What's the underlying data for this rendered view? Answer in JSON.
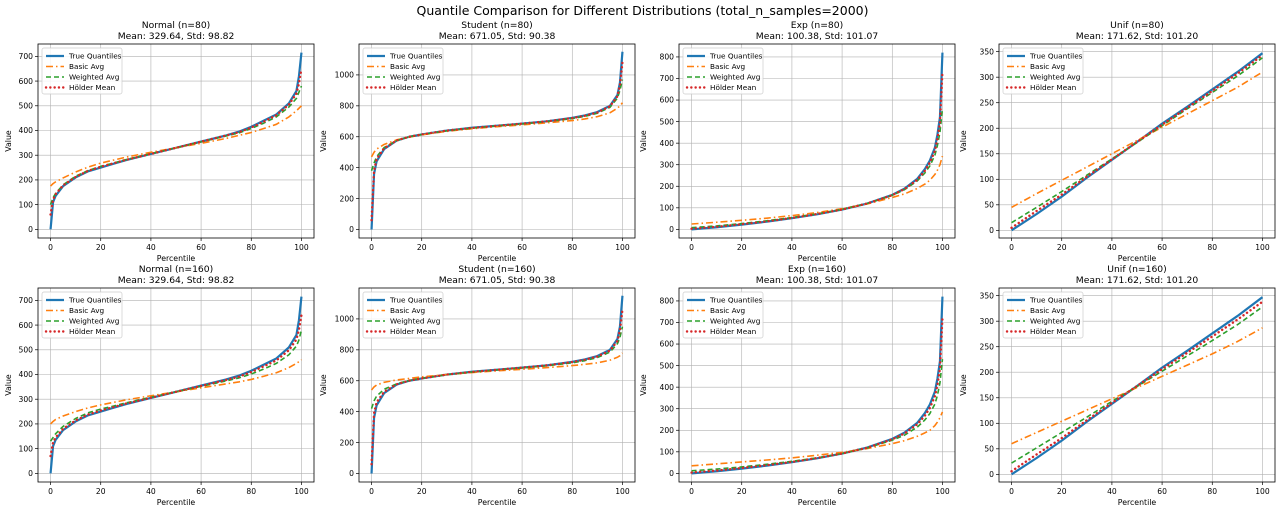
{
  "figure": {
    "title": "Quantile Comparison for Different Distributions (total_n_samples=2000)"
  },
  "legend_labels": [
    "True Quantiles",
    "Basic Avg",
    "Weighted Avg",
    "Hölder Mean"
  ],
  "colors": {
    "true": "#1f77b4",
    "basic": "#ff7f0e",
    "weighted": "#2ca02c",
    "holder": "#d62728",
    "grid": "#b0b0b0"
  },
  "chart_data": [
    {
      "type": "line",
      "title": "Normal (n=80)",
      "subtitle": "Mean: 329.64, Std: 98.82",
      "xlabel": "Percentile",
      "ylabel": "Value",
      "xlim": [
        -5,
        105
      ],
      "ylim": [
        -35,
        750
      ],
      "xticks": [
        0,
        20,
        40,
        60,
        80,
        100
      ],
      "yticks": [
        0,
        100,
        200,
        300,
        400,
        500,
        600,
        700
      ],
      "grid": true,
      "legend": "top-left",
      "x": [
        0,
        1,
        2,
        5,
        10,
        15,
        20,
        25,
        30,
        40,
        50,
        60,
        70,
        75,
        80,
        85,
        90,
        95,
        98,
        99,
        100
      ],
      "series": [
        {
          "name": "True Quantiles",
          "values": [
            0,
            110,
            135,
            175,
            210,
            235,
            250,
            265,
            280,
            305,
            330,
            355,
            380,
            395,
            415,
            440,
            465,
            510,
            560,
            620,
            715
          ]
        },
        {
          "name": "Basic Avg",
          "values": [
            175,
            185,
            192,
            208,
            232,
            252,
            268,
            280,
            292,
            312,
            330,
            348,
            368,
            380,
            392,
            408,
            425,
            455,
            480,
            490,
            500
          ]
        },
        {
          "name": "Weighted Avg",
          "values": [
            100,
            128,
            145,
            180,
            215,
            238,
            255,
            268,
            282,
            306,
            330,
            354,
            378,
            390,
            408,
            430,
            455,
            495,
            530,
            555,
            580
          ]
        },
        {
          "name": "Hölder Mean",
          "values": [
            60,
            120,
            142,
            178,
            212,
            237,
            253,
            267,
            281,
            305,
            330,
            355,
            380,
            393,
            412,
            436,
            462,
            505,
            550,
            590,
            650
          ]
        }
      ]
    },
    {
      "type": "line",
      "title": "Student (n=80)",
      "subtitle": "Mean: 671.05, Std: 90.38",
      "xlabel": "Percentile",
      "ylabel": "Value",
      "xlim": [
        -5,
        105
      ],
      "ylim": [
        -55,
        1200
      ],
      "xticks": [
        0,
        20,
        40,
        60,
        80,
        100
      ],
      "yticks": [
        0,
        200,
        400,
        600,
        800,
        1000
      ],
      "grid": true,
      "legend": "top-left",
      "x": [
        0,
        1,
        2,
        5,
        10,
        15,
        20,
        30,
        40,
        50,
        60,
        70,
        80,
        85,
        90,
        95,
        98,
        99,
        100
      ],
      "series": [
        {
          "name": "True Quantiles",
          "values": [
            0,
            360,
            440,
            520,
            575,
            600,
            615,
            640,
            658,
            671,
            685,
            700,
            722,
            738,
            760,
            800,
            870,
            950,
            1150
          ]
        },
        {
          "name": "Basic Avg",
          "values": [
            470,
            500,
            520,
            550,
            580,
            598,
            612,
            635,
            652,
            665,
            677,
            690,
            705,
            715,
            730,
            755,
            785,
            800,
            820
          ]
        },
        {
          "name": "Weighted Avg",
          "values": [
            380,
            430,
            470,
            530,
            575,
            600,
            614,
            638,
            656,
            670,
            683,
            698,
            718,
            732,
            752,
            790,
            850,
            900,
            970
          ]
        },
        {
          "name": "Hölder Mean",
          "values": [
            60,
            380,
            455,
            525,
            576,
            600,
            615,
            640,
            657,
            671,
            685,
            700,
            721,
            736,
            757,
            797,
            862,
            935,
            1080
          ]
        }
      ]
    },
    {
      "type": "line",
      "title": "Exp (n=80)",
      "subtitle": "Mean: 100.38, Std: 101.07",
      "xlabel": "Percentile",
      "ylabel": "Value",
      "xlim": [
        -5,
        105
      ],
      "ylim": [
        -40,
        860
      ],
      "xticks": [
        0,
        20,
        40,
        60,
        80,
        100
      ],
      "yticks": [
        0,
        100,
        200,
        300,
        400,
        500,
        600,
        700,
        800
      ],
      "grid": true,
      "legend": "top-left",
      "x": [
        0,
        10,
        20,
        30,
        40,
        50,
        60,
        70,
        80,
        85,
        90,
        93,
        95,
        97,
        98,
        99,
        100
      ],
      "series": [
        {
          "name": "True Quantiles",
          "values": [
            0,
            10,
            22,
            36,
            52,
            70,
            92,
            120,
            160,
            190,
            235,
            280,
            320,
            380,
            440,
            520,
            820
          ]
        },
        {
          "name": "Basic Avg",
          "values": [
            25,
            33,
            42,
            52,
            64,
            78,
            96,
            118,
            148,
            165,
            190,
            210,
            228,
            255,
            275,
            300,
            340
          ]
        },
        {
          "name": "Weighted Avg",
          "values": [
            8,
            16,
            27,
            40,
            55,
            72,
            93,
            120,
            158,
            185,
            225,
            262,
            295,
            345,
            390,
            450,
            560
          ]
        },
        {
          "name": "Hölder Mean",
          "values": [
            3,
            12,
            24,
            37,
            53,
            71,
            92,
            120,
            159,
            188,
            230,
            272,
            310,
            365,
            420,
            495,
            730
          ]
        }
      ]
    },
    {
      "type": "line",
      "title": "Unif (n=80)",
      "subtitle": "Mean: 171.62, Std: 101.20",
      "xlabel": "Percentile",
      "ylabel": "Value",
      "xlim": [
        -5,
        105
      ],
      "ylim": [
        -15,
        365
      ],
      "xticks": [
        0,
        20,
        40,
        60,
        80,
        100
      ],
      "yticks": [
        0,
        50,
        100,
        150,
        200,
        250,
        300,
        350
      ],
      "grid": true,
      "legend": "top-left",
      "x": [
        0,
        10,
        20,
        30,
        40,
        50,
        60,
        70,
        80,
        90,
        100
      ],
      "series": [
        {
          "name": "True Quantiles",
          "values": [
            0,
            32,
            66,
            103,
            138,
            173,
            209,
            242,
            276,
            310,
            347
          ]
        },
        {
          "name": "Basic Avg",
          "values": [
            45,
            72,
            98,
            124,
            150,
            176,
            202,
            228,
            254,
            280,
            310
          ]
        },
        {
          "name": "Weighted Avg",
          "values": [
            15,
            45,
            76,
            108,
            140,
            172,
            205,
            238,
            270,
            302,
            338
          ]
        },
        {
          "name": "Hölder Mean",
          "values": [
            5,
            38,
            70,
            105,
            139,
            173,
            207,
            240,
            273,
            307,
            343
          ]
        }
      ]
    },
    {
      "type": "line",
      "title": "Normal (n=160)",
      "subtitle": "Mean: 329.64, Std: 98.82",
      "xlabel": "Percentile",
      "ylabel": "Value",
      "xlim": [
        -5,
        105
      ],
      "ylim": [
        -35,
        750
      ],
      "xticks": [
        0,
        20,
        40,
        60,
        80,
        100
      ],
      "yticks": [
        0,
        100,
        200,
        300,
        400,
        500,
        600,
        700
      ],
      "grid": true,
      "legend": "top-left",
      "x": [
        0,
        1,
        2,
        5,
        10,
        15,
        20,
        25,
        30,
        40,
        50,
        60,
        70,
        75,
        80,
        85,
        90,
        95,
        98,
        99,
        100
      ],
      "series": [
        {
          "name": "True Quantiles",
          "values": [
            0,
            110,
            135,
            175,
            210,
            235,
            250,
            265,
            280,
            305,
            330,
            355,
            380,
            395,
            415,
            440,
            465,
            510,
            560,
            620,
            715
          ]
        },
        {
          "name": "Basic Avg",
          "values": [
            200,
            210,
            218,
            232,
            250,
            265,
            277,
            287,
            297,
            314,
            330,
            346,
            362,
            370,
            380,
            393,
            407,
            428,
            445,
            452,
            460
          ]
        },
        {
          "name": "Weighted Avg",
          "values": [
            130,
            145,
            160,
            190,
            222,
            245,
            260,
            272,
            285,
            308,
            330,
            352,
            374,
            386,
            402,
            422,
            445,
            480,
            515,
            540,
            580
          ]
        },
        {
          "name": "Hölder Mean",
          "values": [
            70,
            125,
            145,
            180,
            214,
            238,
            254,
            268,
            282,
            306,
            330,
            354,
            378,
            391,
            410,
            433,
            457,
            498,
            542,
            580,
            640
          ]
        }
      ]
    },
    {
      "type": "line",
      "title": "Student (n=160)",
      "subtitle": "Mean: 671.05, Std: 90.38",
      "xlabel": "Percentile",
      "ylabel": "Value",
      "xlim": [
        -5,
        105
      ],
      "ylim": [
        -55,
        1200
      ],
      "xticks": [
        0,
        20,
        40,
        60,
        80,
        100
      ],
      "yticks": [
        0,
        200,
        400,
        600,
        800,
        1000
      ],
      "grid": true,
      "legend": "top-left",
      "x": [
        0,
        1,
        2,
        5,
        10,
        15,
        20,
        30,
        40,
        50,
        60,
        70,
        80,
        85,
        90,
        95,
        98,
        99,
        100
      ],
      "series": [
        {
          "name": "True Quantiles",
          "values": [
            0,
            360,
            440,
            520,
            575,
            600,
            615,
            640,
            658,
            671,
            685,
            700,
            722,
            738,
            760,
            800,
            870,
            950,
            1150
          ]
        },
        {
          "name": "Basic Avg",
          "values": [
            540,
            560,
            572,
            590,
            605,
            615,
            625,
            640,
            653,
            664,
            674,
            685,
            698,
            706,
            716,
            733,
            752,
            762,
            780
          ]
        },
        {
          "name": "Weighted Avg",
          "values": [
            420,
            470,
            500,
            545,
            580,
            602,
            616,
            639,
            656,
            670,
            683,
            697,
            716,
            730,
            750,
            785,
            840,
            880,
            950
          ]
        },
        {
          "name": "Hölder Mean",
          "values": [
            60,
            390,
            460,
            528,
            577,
            601,
            615,
            640,
            657,
            671,
            685,
            700,
            721,
            736,
            757,
            795,
            858,
            925,
            1060
          ]
        }
      ]
    },
    {
      "type": "line",
      "title": "Exp (n=160)",
      "subtitle": "Mean: 100.38, Std: 101.07",
      "xlabel": "Percentile",
      "ylabel": "Value",
      "xlim": [
        -5,
        105
      ],
      "ylim": [
        -40,
        860
      ],
      "xticks": [
        0,
        20,
        40,
        60,
        80,
        100
      ],
      "yticks": [
        0,
        100,
        200,
        300,
        400,
        500,
        600,
        700,
        800
      ],
      "grid": true,
      "legend": "top-left",
      "x": [
        0,
        10,
        20,
        30,
        40,
        50,
        60,
        70,
        80,
        85,
        90,
        93,
        95,
        97,
        98,
        99,
        100
      ],
      "series": [
        {
          "name": "True Quantiles",
          "values": [
            0,
            10,
            22,
            36,
            52,
            70,
            92,
            120,
            160,
            190,
            235,
            280,
            320,
            380,
            440,
            520,
            820
          ]
        },
        {
          "name": "Basic Avg",
          "values": [
            35,
            44,
            53,
            62,
            72,
            84,
            98,
            115,
            138,
            152,
            172,
            188,
            200,
            222,
            238,
            258,
            285
          ]
        },
        {
          "name": "Weighted Avg",
          "values": [
            12,
            20,
            30,
            42,
            56,
            72,
            92,
            118,
            154,
            178,
            215,
            248,
            278,
            322,
            362,
            420,
            530
          ]
        },
        {
          "name": "Hölder Mean",
          "values": [
            4,
            13,
            25,
            38,
            53,
            71,
            92,
            119,
            158,
            186,
            228,
            268,
            304,
            358,
            410,
            485,
            720
          ]
        }
      ]
    },
    {
      "type": "line",
      "title": "Unif (n=160)",
      "subtitle": "Mean: 171.62, Std: 101.20",
      "xlabel": "Percentile",
      "ylabel": "Value",
      "xlim": [
        -5,
        105
      ],
      "ylim": [
        -15,
        365
      ],
      "xticks": [
        0,
        20,
        40,
        60,
        80,
        100
      ],
      "yticks": [
        0,
        50,
        100,
        150,
        200,
        250,
        300,
        350
      ],
      "grid": true,
      "legend": "top-left",
      "x": [
        0,
        10,
        20,
        30,
        40,
        50,
        60,
        70,
        80,
        90,
        100
      ],
      "series": [
        {
          "name": "True Quantiles",
          "values": [
            0,
            32,
            66,
            103,
            138,
            173,
            209,
            242,
            276,
            310,
            347
          ]
        },
        {
          "name": "Basic Avg",
          "values": [
            60,
            82,
            104,
            126,
            148,
            170,
            192,
            214,
            236,
            260,
            287
          ]
        },
        {
          "name": "Weighted Avg",
          "values": [
            22,
            52,
            82,
            112,
            143,
            172,
            202,
            232,
            262,
            293,
            328
          ]
        },
        {
          "name": "Hölder Mean",
          "values": [
            6,
            39,
            71,
            106,
            140,
            173,
            206,
            238,
            270,
            303,
            338
          ]
        }
      ]
    }
  ]
}
